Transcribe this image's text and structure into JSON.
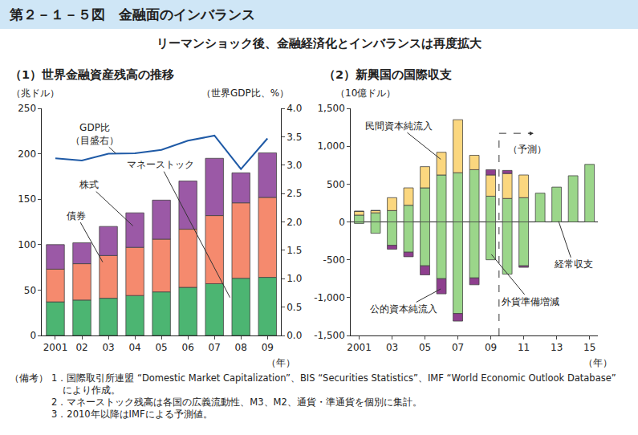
{
  "header": {
    "title": "第２－１－５図　金融面のインバランス",
    "subtitle": "リーマンショック後、金融経済化とインバランスは再度拡大"
  },
  "chart_data": [
    {
      "type": "bar",
      "title": "（1）世界金融資産残高の推移",
      "stacked": true,
      "categories": [
        "2001",
        "02",
        "03",
        "04",
        "05",
        "06",
        "07",
        "08",
        "09"
      ],
      "xlabel": "（年）",
      "ylabel": "（兆ドル）",
      "y2label": "（世界GDP比、%）",
      "ylim": [
        0,
        250
      ],
      "yticks": [
        0,
        50,
        100,
        150,
        200,
        250
      ],
      "y2lim": [
        0,
        4
      ],
      "y2ticks": [
        {
          "value": 0,
          "label": "0.0"
        },
        0.5,
        {
          "value": 1,
          "label": "1.0"
        },
        1.5,
        {
          "value": 2,
          "label": "2.0"
        },
        2.5,
        {
          "value": 3,
          "label": "3.0"
        },
        3.5,
        {
          "value": 4,
          "label": "4.0"
        }
      ],
      "series": [
        {
          "name": "マネーストック",
          "color": "#4cb572",
          "values": [
            37,
            39,
            41,
            44,
            48,
            53,
            57,
            63,
            64
          ]
        },
        {
          "name": "債券",
          "color": "#f58a6e",
          "values": [
            36,
            40,
            47,
            53,
            58,
            64,
            75,
            83,
            88
          ]
        },
        {
          "name": "株式",
          "color": "#9b59a6",
          "values": [
            27,
            23,
            32,
            38,
            43,
            53,
            63,
            33,
            49
          ]
        },
        {
          "name": "GDP比（目盛右）",
          "type": "line",
          "axis": "y2",
          "color": "#1f5aa6",
          "values": [
            3.12,
            3.08,
            3.2,
            3.21,
            3.27,
            3.43,
            3.52,
            2.93,
            3.47
          ]
        }
      ]
    },
    {
      "type": "bar",
      "title": "（2）新興国の国際収支",
      "stacked": true,
      "categories": [
        "2001",
        null,
        "03",
        null,
        "05",
        null,
        "07",
        null,
        "09",
        null,
        "11",
        null,
        "13",
        null,
        "15"
      ],
      "xlabel": "（年）",
      "ylabel": "（10億ドル）",
      "ylim": [
        -1500,
        1500
      ],
      "yticks": [
        {
          "value": -1500,
          "label": "-1,500"
        },
        {
          "value": -1000,
          "label": "-1,000"
        },
        -500,
        0,
        500,
        {
          "value": 1000,
          "label": "1,000"
        },
        {
          "value": 1500,
          "label": "1,500"
        }
      ],
      "annotations": [
        "（予測）"
      ],
      "series": [
        {
          "name": "経常収支",
          "color": "#9bd68a",
          "values": [
            90,
            120,
            150,
            220,
            450,
            620,
            650,
            690,
            340,
            310,
            320,
            380,
            460,
            610,
            760
          ]
        },
        {
          "name": "民間資本純流入",
          "color": "#fbd77f",
          "values": [
            50,
            30,
            170,
            230,
            280,
            300,
            700,
            190,
            280,
            330,
            300,
            null,
            null,
            null,
            null
          ]
        },
        {
          "name": "外貨準備増減",
          "color": "#9bd68a",
          "values": [
            -20,
            -150,
            -310,
            -400,
            -580,
            -750,
            -1210,
            -740,
            -500,
            -690,
            -580,
            null,
            null,
            null,
            null
          ]
        },
        {
          "name": "公的資本純流入",
          "color": "#8e3f8e",
          "values": [
            0,
            0,
            -50,
            -60,
            -120,
            -200,
            -100,
            -90,
            70,
            40,
            -20,
            null,
            null,
            null,
            null
          ]
        }
      ]
    }
  ],
  "notes": {
    "label": "（備考）",
    "items": [
      "1．国際取引所連盟 “Domestic Market Capitalization”、BIS “Securities Statistics”、IMF “World Economic Outlook Database” により作成。",
      "2．マネーストック残高は各国の広義流動性、M3、M2、通貨・準通貨を個別に集計。",
      "3．2010年以降はIMFによる予測値。"
    ]
  }
}
